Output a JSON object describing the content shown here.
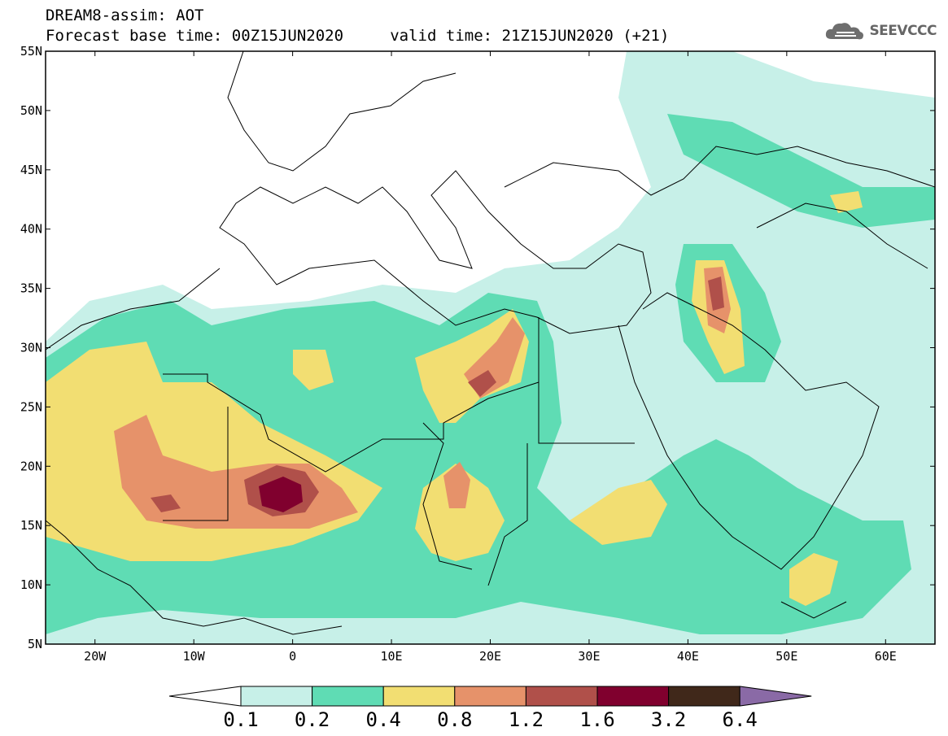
{
  "header": {
    "title_line1": "DREAM8-assim: AOT",
    "title_line2": "Forecast base time: 00Z15JUN2020     valid time: 21Z15JUN2020 (+21)",
    "logo_text": "SEEVCCC"
  },
  "map": {
    "lon_range": [
      -25,
      65
    ],
    "lat_range": [
      5,
      55
    ],
    "lat_labels": [
      "55N",
      "50N",
      "45N",
      "40N",
      "35N",
      "30N",
      "25N",
      "20N",
      "15N",
      "10N",
      "5N"
    ],
    "lon_labels": [
      "20W",
      "10W",
      "0",
      "10E",
      "20E",
      "30E",
      "40E",
      "50E",
      "60E"
    ]
  },
  "colorbar": {
    "labels": [
      "0.1",
      "0.2",
      "0.4",
      "0.8",
      "1.2",
      "1.6",
      "3.2",
      "6.4"
    ],
    "colors": [
      "#ffffff",
      "#c7f0e8",
      "#5fdcb4",
      "#f2de72",
      "#e6926a",
      "#b0504a",
      "#80002e",
      "#40281a",
      "#8a6aa6"
    ]
  }
}
